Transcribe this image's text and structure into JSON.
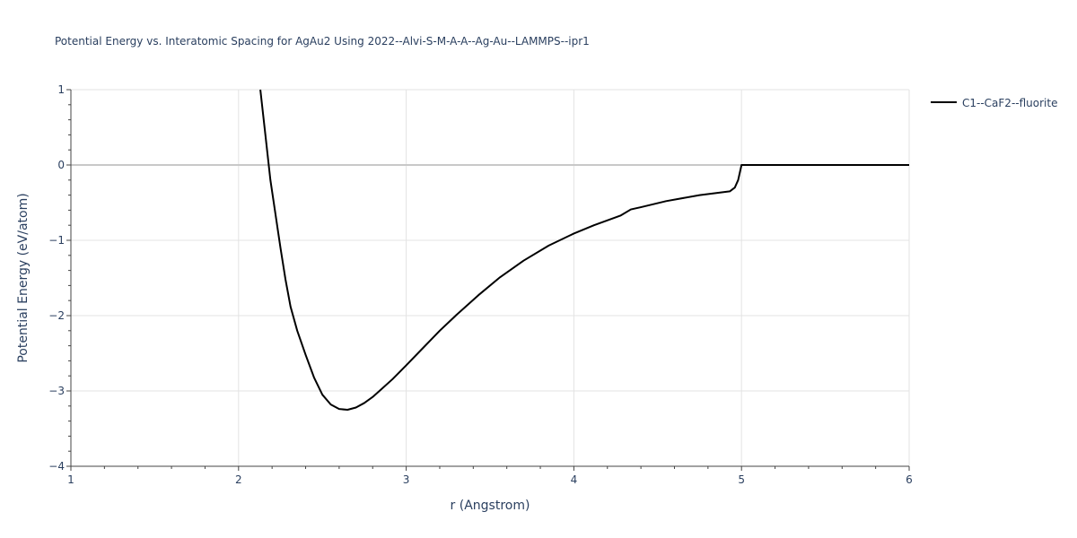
{
  "chart_data": {
    "type": "line",
    "title": "Potential Energy vs. Interatomic Spacing for AgAu2 Using 2022--Alvi-S-M-A-A--Ag-Au--LAMMPS--ipr1",
    "xlabel": "r (Angstrom)",
    "ylabel": "Potential Energy (eV/atom)",
    "xlim": [
      1,
      6
    ],
    "ylim": [
      -4,
      1
    ],
    "xticks": [
      1,
      2,
      3,
      4,
      5,
      6
    ],
    "yticks": [
      -4,
      -3,
      -2,
      -1,
      0,
      1
    ],
    "xtick_labels": [
      "1",
      "2",
      "3",
      "4",
      "5",
      "6"
    ],
    "ytick_labels": [
      "−4",
      "−3",
      "−2",
      "−1",
      "0",
      "1"
    ],
    "grid": true,
    "legend_position": "top-right",
    "series": [
      {
        "name": "C1--CaF2--fluorite",
        "color": "#000000",
        "x": [
          2.13,
          2.16,
          2.19,
          2.22,
          2.25,
          2.28,
          2.31,
          2.35,
          2.4,
          2.45,
          2.5,
          2.55,
          2.6,
          2.65,
          2.7,
          2.75,
          2.8,
          2.85,
          2.92,
          3.0,
          3.1,
          3.2,
          3.3,
          3.43,
          3.56,
          3.7,
          3.85,
          4.0,
          4.12,
          4.28,
          4.34,
          4.4,
          4.55,
          4.75,
          4.93,
          4.96,
          4.98,
          5.0,
          5.1,
          5.5,
          6.0
        ],
        "y": [
          1.0,
          0.4,
          -0.2,
          -0.65,
          -1.1,
          -1.52,
          -1.88,
          -2.2,
          -2.52,
          -2.82,
          -3.05,
          -3.18,
          -3.24,
          -3.25,
          -3.22,
          -3.16,
          -3.08,
          -2.98,
          -2.84,
          -2.66,
          -2.43,
          -2.2,
          -1.99,
          -1.73,
          -1.49,
          -1.27,
          -1.07,
          -0.91,
          -0.8,
          -0.67,
          -0.59,
          -0.56,
          -0.48,
          -0.4,
          -0.35,
          -0.3,
          -0.2,
          0.0,
          0.0,
          0.0,
          0.0
        ]
      }
    ]
  }
}
